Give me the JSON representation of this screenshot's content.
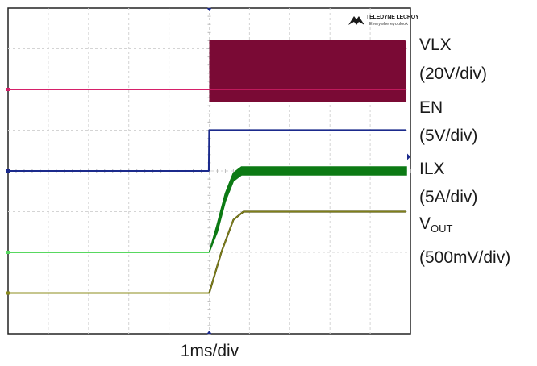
{
  "chart_data": {
    "type": "line",
    "x_unit": "ms",
    "x_per_div": 1,
    "x_divisions": 10,
    "y_divisions": 8,
    "trigger_time_ms": 5.0,
    "timebase_label": "1ms/div",
    "logo": {
      "brand": "TELEDYNE LECROY",
      "tagline": "Everywhereyoulook"
    },
    "series": [
      {
        "key": "vlx",
        "name": "VLX",
        "scale": "(20V/div)",
        "color": "#7a0a35",
        "baseline_color": "#d6206a",
        "offset_div": 2.0,
        "values_div": [
          [
            0,
            0
          ],
          [
            5.0,
            0
          ],
          [
            5.0,
            0.3
          ]
        ],
        "switching_band_div": {
          "x_start": 5.0,
          "x_end": 9.9,
          "low": -0.3,
          "high": 1.2
        }
      },
      {
        "key": "en",
        "name": "EN",
        "scale": "(5V/div)",
        "color": "#1b2a8c",
        "offset_div": 4.0,
        "values_div": [
          [
            0,
            0
          ],
          [
            4.99,
            0
          ],
          [
            5.0,
            1.0
          ],
          [
            9.9,
            1.0
          ]
        ]
      },
      {
        "key": "ilx",
        "name": "ILX",
        "scale": "(5A/div)",
        "color": "#0c7a14",
        "baseline_color": "#58d860",
        "offset_div": 6.0,
        "values_div": [
          [
            0,
            0
          ],
          [
            5.0,
            0
          ],
          [
            5.2,
            0.6
          ],
          [
            5.4,
            1.35
          ],
          [
            5.6,
            1.85
          ],
          [
            5.8,
            2.0
          ],
          [
            9.9,
            2.0
          ]
        ],
        "ripple_div": 0.2
      },
      {
        "key": "vout",
        "name": "V",
        "name_sub": "OUT",
        "scale": "(500mV/div)",
        "color": "#5a5a10",
        "baseline_color": "#8c8c1e",
        "offset_div": 7.0,
        "values_div": [
          [
            0,
            0
          ],
          [
            5.0,
            0
          ],
          [
            5.3,
            1.0
          ],
          [
            5.6,
            1.8
          ],
          [
            5.85,
            2.0
          ],
          [
            9.9,
            2.0
          ]
        ]
      }
    ]
  }
}
